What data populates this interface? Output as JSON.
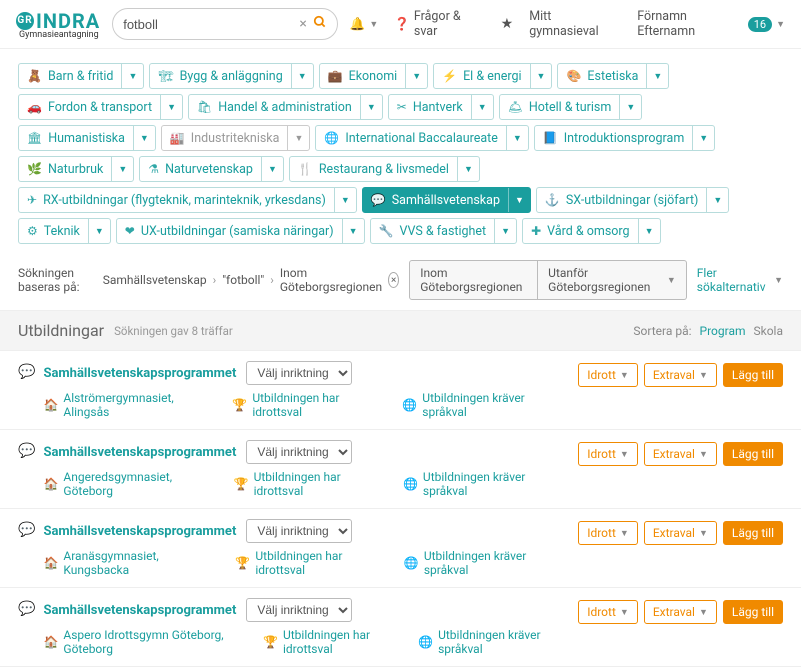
{
  "brand": {
    "main": "INDRA",
    "logo_letters": "GR",
    "sub": "Gymnasieantagning"
  },
  "search": {
    "value": "fotboll"
  },
  "topnav": {
    "faq": "Frågor & svar",
    "mychoice": "Mitt gymnasieval",
    "username": "Förnamn Efternamn",
    "notif_count": "16"
  },
  "categories": [
    {
      "label": "Barn & fritid",
      "icon": "🧸"
    },
    {
      "label": "Bygg & anläggning",
      "icon": "🏗"
    },
    {
      "label": "Ekonomi",
      "icon": "💼"
    },
    {
      "label": "El & energi",
      "icon": "⚡"
    },
    {
      "label": "Estetiska",
      "icon": "🎨"
    },
    {
      "label": "Fordon & transport",
      "icon": "🚗"
    },
    {
      "label": "Handel & administration",
      "icon": "🛍"
    },
    {
      "label": "Hantverk",
      "icon": "✂"
    },
    {
      "label": "Hotell & turism",
      "icon": "🛎"
    },
    {
      "label": "Humanistiska",
      "icon": "🏛"
    },
    {
      "label": "Industritekniska",
      "icon": "🏭",
      "gray": true
    },
    {
      "label": "International Baccalaureate",
      "icon": "🌐"
    },
    {
      "label": "Introduktionsprogram",
      "icon": "📘"
    },
    {
      "label": "Naturbruk",
      "icon": "🌿"
    },
    {
      "label": "Naturvetenskap",
      "icon": "⚗"
    },
    {
      "label": "Restaurang & livsmedel",
      "icon": "🍴"
    },
    {
      "label": "RX-utbildningar (flygteknik, marinteknik, yrkesdans)",
      "icon": "✈"
    },
    {
      "label": "Samhällsvetenskap",
      "icon": "💬",
      "active": true
    },
    {
      "label": "SX-utbildningar (sjöfart)",
      "icon": "⚓"
    },
    {
      "label": "Teknik",
      "icon": "⚙"
    },
    {
      "label": "UX-utbildningar (samiska näringar)",
      "icon": "❤"
    },
    {
      "label": "VVS & fastighet",
      "icon": "🔧"
    },
    {
      "label": "Vård & omsorg",
      "icon": "✚"
    }
  ],
  "crumbs": {
    "prefix": "Sökningen baseras på:",
    "c1": "Samhällsvetenskap",
    "c2": "\"fotboll\"",
    "c3": "Inom Göteborgsregionen"
  },
  "region_buttons": {
    "inside": "Inom Göteborgsregionen",
    "outside": "Utanför Göteborgsregionen"
  },
  "more_filters": "Fler sökalternativ",
  "results_header": {
    "title": "Utbildningar",
    "count": "Sökningen gav 8 träffar"
  },
  "sort": {
    "label": "Sortera på:",
    "a": "Program",
    "b": "Skola"
  },
  "direction_placeholder": "Välj inriktning",
  "action_labels": {
    "idrott": "Idrott",
    "extraval": "Extraval",
    "add": "Lägg till"
  },
  "results": [
    {
      "title": "Samhällsvetenskapsprogrammet",
      "school": "Alströmergymnasiet, Alingsås",
      "sport": "Utbildningen har idrottsval",
      "lang": "Utbildningen kräver språkval"
    },
    {
      "title": "Samhällsvetenskapsprogrammet",
      "school": "Angeredsgymnasiet, Göteborg",
      "sport": "Utbildningen har idrottsval",
      "lang": "Utbildningen kräver språkval"
    },
    {
      "title": "Samhällsvetenskapsprogrammet",
      "school": "Aranäsgymnasiet, Kungsbacka",
      "sport": "Utbildningen har idrottsval",
      "lang": "Utbildningen kräver språkval"
    },
    {
      "title": "Samhällsvetenskapsprogrammet",
      "school": "Aspero Idrottsgymn Göteborg, Göteborg",
      "sport": "Utbildningen har idrottsval",
      "lang": "Utbildningen kräver språkval"
    }
  ]
}
